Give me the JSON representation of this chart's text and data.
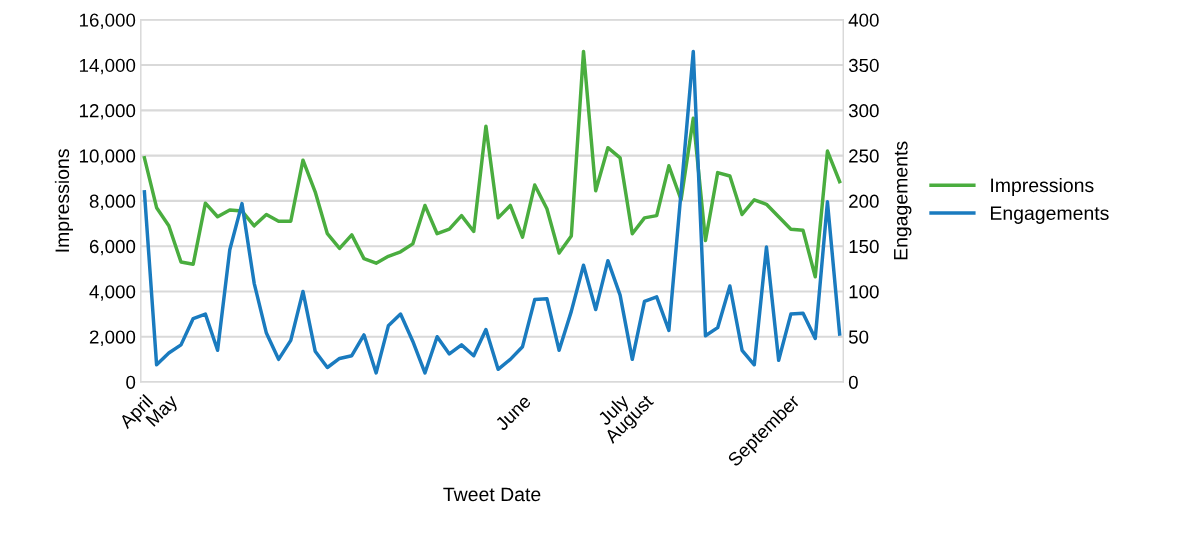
{
  "chart_data": {
    "type": "line",
    "xlabel": "Tweet Date",
    "ylabel": "Impressions",
    "y2label": "Engagements",
    "categories": [
      "April",
      null,
      "May",
      null,
      null,
      null,
      null,
      null,
      null,
      null,
      null,
      null,
      null,
      null,
      null,
      null,
      null,
      null,
      null,
      null,
      null,
      null,
      null,
      null,
      null,
      null,
      null,
      null,
      null,
      null,
      null,
      "June",
      null,
      null,
      null,
      null,
      null,
      null,
      null,
      "July",
      null,
      "August",
      null,
      null,
      null,
      null,
      null,
      null,
      null,
      null,
      null,
      null,
      null,
      "September",
      null,
      null,
      null,
      null
    ],
    "series": [
      {
        "name": "Impressions",
        "color": "#4aad3f",
        "values": [
          9900,
          7700,
          6900,
          5300,
          5200,
          7900,
          7300,
          7600,
          7550,
          6900,
          7400,
          7100,
          7100,
          9800,
          8400,
          6550,
          5900,
          6500,
          5450,
          5250,
          5550,
          5750,
          6100,
          7800,
          6550,
          6750,
          7350,
          6650,
          11300,
          7250,
          7800,
          6400,
          8700,
          7650,
          5700,
          6450,
          14600,
          8450,
          10350,
          9900,
          6550,
          7250,
          7350,
          9550,
          8050,
          11650,
          6250,
          9250,
          9100,
          7400,
          8050,
          7850,
          7300,
          6750,
          6700,
          4650,
          10200,
          8850
        ]
      },
      {
        "name": "Engagements",
        "color": "#1a7bbf",
        "axis": "y2",
        "values": [
          210,
          19,
          32,
          41,
          70,
          75,
          35,
          146,
          197,
          109,
          54,
          25,
          46,
          100,
          34,
          16,
          26,
          29,
          52,
          10,
          62,
          75,
          45,
          10,
          50,
          31,
          41,
          29,
          58,
          14,
          25,
          39,
          91,
          92,
          35,
          78,
          129,
          80,
          134,
          96,
          25,
          89,
          94,
          57,
          210,
          365,
          51,
          60,
          106,
          35,
          19,
          149,
          24,
          75,
          76,
          48,
          199,
          53
        ]
      }
    ],
    "ylim": [
      0,
      16000
    ],
    "yticks": [
      {
        "value": 0,
        "label": "0"
      },
      {
        "value": 2000,
        "label": "2,000"
      },
      {
        "value": 4000,
        "label": "4,000"
      },
      {
        "value": 6000,
        "label": "6,000"
      },
      {
        "value": 8000,
        "label": "8,000"
      },
      {
        "value": 10000,
        "label": "10,000"
      },
      {
        "value": 12000,
        "label": "12,000"
      },
      {
        "value": 14000,
        "label": "14,000"
      },
      {
        "value": 16000,
        "label": "16,000"
      }
    ],
    "y2lim": [
      0,
      400
    ],
    "y2ticks": [
      0,
      50,
      100,
      150,
      200,
      250,
      300,
      350,
      400
    ],
    "grid": "y",
    "legend": "right",
    "marker": "none",
    "line_style": "solid"
  }
}
